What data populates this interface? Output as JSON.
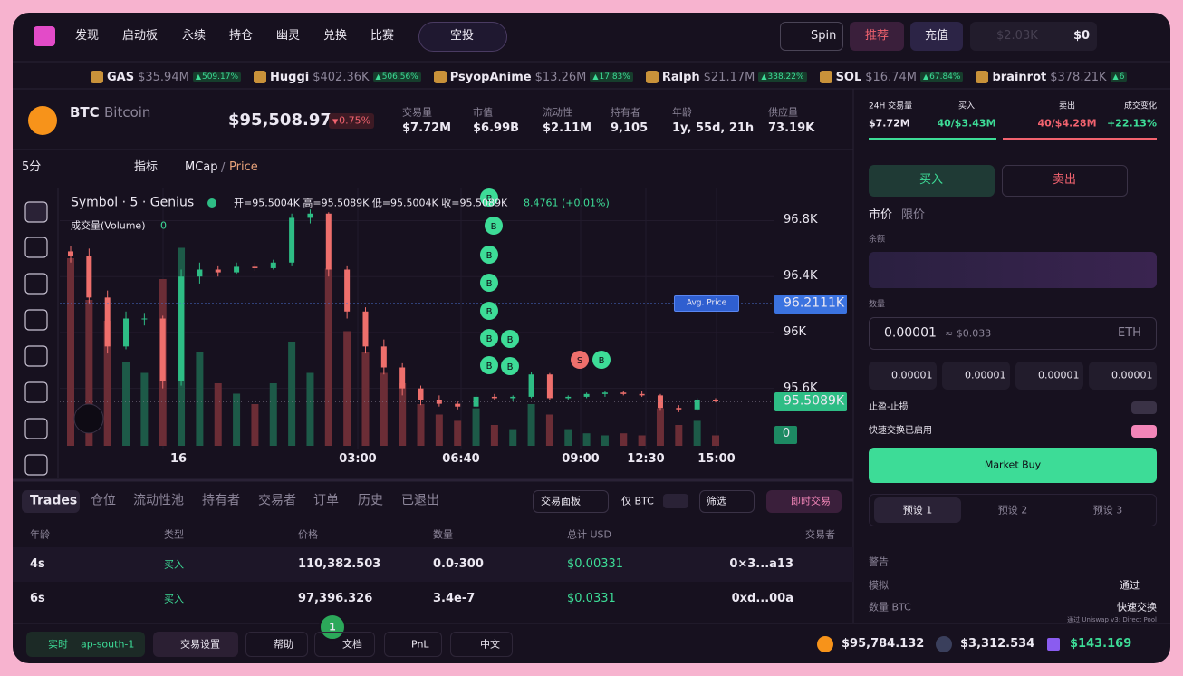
{
  "nav": {
    "items": [
      "发现",
      "启动板",
      "永续",
      "持仓",
      "幽灵",
      "兑换",
      "比赛"
    ],
    "airdrop": "空投",
    "spin": "Spin",
    "referral": "推荐",
    "deposit": "充值",
    "hidden_balance": "$2.03K",
    "balance": "$0"
  },
  "ticker": [
    {
      "name": "GAS",
      "value": "$35.94M",
      "change": "509.17%"
    },
    {
      "name": "Huggi",
      "value": "$402.36K",
      "change": "506.56%"
    },
    {
      "name": "PsyopAnime",
      "value": "$13.26M",
      "change": "17.83%"
    },
    {
      "name": "Ralph",
      "value": "$21.17M",
      "change": "338.22%"
    },
    {
      "name": "SOL",
      "value": "$16.74M",
      "change": "67.84%"
    },
    {
      "name": "brainrot",
      "value": "$378.21K",
      "change": "6"
    }
  ],
  "token": {
    "symbol": "BTC",
    "name": "Bitcoin",
    "price": "$95,508.972",
    "change": "0.75%",
    "stats": [
      {
        "label": "交易量",
        "value": "$7.72M"
      },
      {
        "label": "市值",
        "value": "$6.99B"
      },
      {
        "label": "流动性",
        "value": "$2.11M"
      },
      {
        "label": "持有者",
        "value": "9,105"
      },
      {
        "label": "年龄",
        "value": "1y, 55d, 21h"
      },
      {
        "label": "供应量",
        "value": "73.19K"
      }
    ]
  },
  "chart": {
    "type": "candlestick",
    "interval": "5分",
    "indicators": "指标",
    "mcap": "MCap",
    "price": "Price",
    "legend_title": "Symbol · 5 · Genius",
    "ohlc": "开=95.5004K 高=95.5089K 低=95.5004K 收=95.5089K",
    "change": "8.4761 (+0.01%)",
    "volume_label": "成交量(Volume)",
    "volume_value": "0",
    "avg_price": "Avg. Price",
    "avg_tag": "96.2111K",
    "last_tag": "95.5089K",
    "volume_tag": "0",
    "ylim": [
      95.17,
      97.03
    ],
    "yticks": [
      {
        "value": 96.8,
        "label": "96.8K"
      },
      {
        "value": 96.4,
        "label": "96.4K"
      },
      {
        "value": 96,
        "label": "96K"
      },
      {
        "value": 95.6,
        "label": "95.6K"
      }
    ],
    "grid": true,
    "xlabels": [
      "16",
      "03:00",
      "06:40",
      "09:00",
      "12:30",
      "15:00"
    ],
    "candles": [
      [
        96.58,
        96.62,
        96.5,
        96.55
      ],
      [
        96.55,
        96.6,
        96.2,
        96.25
      ],
      [
        96.25,
        96.3,
        95.85,
        95.9
      ],
      [
        95.9,
        96.15,
        95.88,
        96.1
      ],
      [
        96.1,
        96.14,
        96.05,
        96.1
      ],
      [
        96.1,
        96.12,
        95.6,
        95.65
      ],
      [
        95.65,
        96.45,
        95.62,
        96.4
      ],
      [
        96.4,
        96.5,
        96.35,
        96.45
      ],
      [
        96.45,
        96.48,
        96.4,
        96.43
      ],
      [
        96.43,
        96.5,
        96.42,
        96.47
      ],
      [
        96.47,
        96.5,
        96.44,
        96.46
      ],
      [
        96.46,
        96.52,
        96.45,
        96.5
      ],
      [
        96.5,
        96.85,
        96.48,
        96.82
      ],
      [
        96.82,
        96.88,
        96.78,
        96.85
      ],
      [
        96.85,
        96.86,
        96.4,
        96.45
      ],
      [
        96.45,
        96.48,
        96.1,
        96.15
      ],
      [
        96.15,
        96.18,
        95.85,
        95.9
      ],
      [
        95.9,
        95.95,
        95.7,
        95.75
      ],
      [
        95.75,
        95.78,
        95.55,
        95.6
      ],
      [
        95.6,
        95.62,
        95.48,
        95.52
      ],
      [
        95.52,
        95.55,
        95.47,
        95.49
      ],
      [
        95.49,
        95.51,
        95.45,
        95.47
      ],
      [
        95.47,
        95.56,
        95.46,
        95.54
      ],
      [
        95.54,
        95.56,
        95.52,
        95.53
      ],
      [
        95.53,
        95.55,
        95.51,
        95.54
      ],
      [
        95.54,
        95.72,
        95.53,
        95.7
      ],
      [
        95.7,
        95.71,
        95.52,
        95.53
      ],
      [
        95.53,
        95.55,
        95.52,
        95.54
      ],
      [
        95.54,
        95.57,
        95.53,
        95.56
      ],
      [
        95.56,
        95.58,
        95.54,
        95.57
      ],
      [
        95.57,
        95.58,
        95.55,
        95.56
      ],
      [
        95.56,
        95.58,
        95.54,
        95.55
      ],
      [
        95.55,
        95.56,
        95.44,
        95.46
      ],
      [
        95.46,
        95.48,
        95.43,
        95.45
      ],
      [
        95.45,
        95.53,
        95.44,
        95.52
      ],
      [
        95.52,
        95.53,
        95.5,
        95.51
      ]
    ],
    "volumes": [
      90,
      70,
      60,
      40,
      35,
      80,
      95,
      45,
      30,
      25,
      20,
      30,
      50,
      35,
      85,
      55,
      45,
      35,
      30,
      20,
      15,
      12,
      18,
      10,
      8,
      20,
      15,
      8,
      6,
      5,
      6,
      5,
      18,
      10,
      12,
      5
    ],
    "vlim": [
      0,
      100
    ],
    "markers": [
      "B",
      "B",
      "B",
      "B",
      "B",
      "B",
      "B",
      "B",
      "B",
      "S",
      "B"
    ]
  },
  "panel": {
    "stats": [
      {
        "label": "24H 交易量",
        "value": "$7.72M"
      },
      {
        "label": "买入",
        "value": "40/$3.43M"
      },
      {
        "label": "卖出",
        "value": "40/$4.28M"
      },
      {
        "label": "成交变化",
        "value": "+22.13%"
      }
    ],
    "buy": "买入",
    "sell": "卖出",
    "market": "市价",
    "limit": "限价",
    "balance": "余额",
    "amount": "数量",
    "amount_value": "0.00001",
    "amount_usd": "≈ $0.033",
    "unit": "ETH",
    "presets": [
      "0.00001",
      "0.00001",
      "0.00001",
      "0.00001"
    ],
    "tpsl": "止盈-止损",
    "fast": "快速交换已启用",
    "market_buy": "Market Buy",
    "preset_tabs": [
      "预设 1",
      "预设 2",
      "预设 3"
    ],
    "warning": "警告",
    "simulate": "模拟",
    "pass": "通过",
    "amount_btc": "数量 BTC",
    "fast_swap": "快速交换",
    "route": "通过 Uniswap v3: Direct Pool"
  },
  "trades": {
    "tabs": [
      "Trades",
      "仓位",
      "流动性池",
      "持有者",
      "交易者",
      "订单",
      "历史",
      "已退出"
    ],
    "panel": "交易面板",
    "only": "仅 BTC",
    "filter": "筛选",
    "instant": "即时交易",
    "headers": [
      "年龄",
      "类型",
      "价格",
      "数量",
      "总计 USD",
      "交易者"
    ],
    "rows": [
      [
        "4s",
        "买入",
        "110,382.503",
        "0.0₇300",
        "$0.00331",
        "0×3...a13"
      ],
      [
        "6s",
        "买入",
        "97,396.326",
        "3.4e-7",
        "$0.0331",
        "0xd...00a"
      ]
    ]
  },
  "footer": {
    "live": "实时",
    "region": "ap-south-1",
    "settings": "交易设置",
    "help": "帮助",
    "docs_badge": "1",
    "docs": "文档",
    "pnl": "PnL",
    "lang": "中文",
    "btc": "$95,784.132",
    "eth": "$3,312.534",
    "sol": "$143.169"
  }
}
